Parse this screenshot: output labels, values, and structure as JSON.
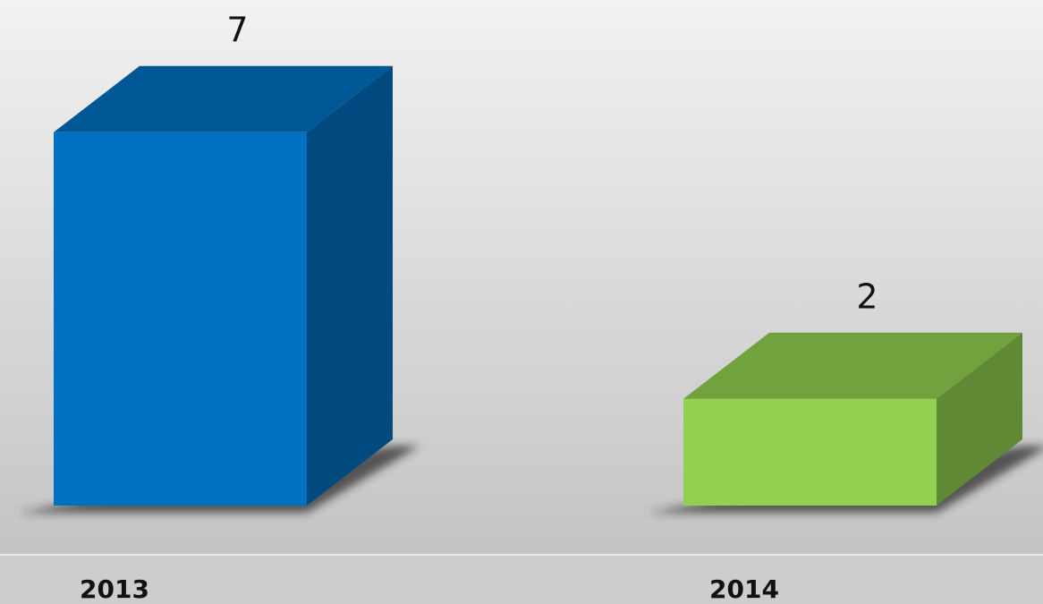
{
  "chart_data": {
    "type": "bar3d",
    "categories": [
      "2013",
      "2014"
    ],
    "values": [
      7,
      2
    ],
    "colors": [
      "#0070c0",
      "#92d050"
    ]
  }
}
